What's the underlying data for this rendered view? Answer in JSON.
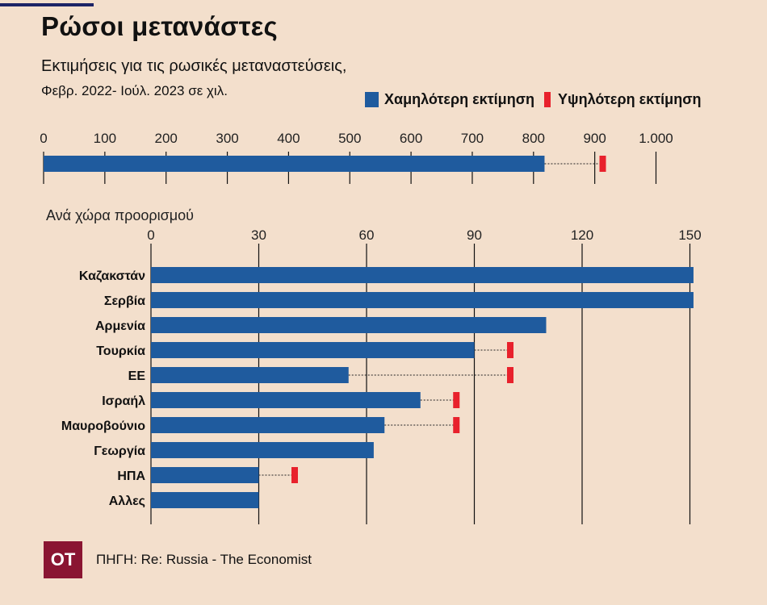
{
  "header": {
    "title": "Ρώσοι μετανάστες",
    "subtitle": "Εκτιμήσεις για τις ρωσικές μεταναστεύσεις,",
    "subtitle2": "Φεβρ. 2022- Ιούλ. 2023 σε χιλ."
  },
  "legend": {
    "low": "Χαμηλότερη εκτίμηση",
    "high": "Υψηλότερη εκτίμηση"
  },
  "colors": {
    "low": "#1f5b9e",
    "high": "#e8212c",
    "background": "#f3dfcc",
    "grid": "#111111"
  },
  "chart_data": [
    {
      "type": "bar",
      "orientation": "horizontal",
      "xlim": [
        0,
        1000
      ],
      "ticks": [
        0,
        100,
        200,
        300,
        400,
        500,
        600,
        700,
        800,
        900,
        1000
      ],
      "tick_labels": [
        "0",
        "100",
        "200",
        "300",
        "400",
        "500",
        "600",
        "700",
        "800",
        "900",
        "1.000"
      ],
      "categories": [
        ""
      ],
      "series": [
        {
          "name": "Χαμηλότερη εκτίμηση",
          "values": [
            818
          ]
        },
        {
          "name": "Υψηλότερη εκτίμηση",
          "values": [
            913
          ]
        }
      ]
    },
    {
      "type": "bar",
      "orientation": "horizontal",
      "title": "Ανά χώρα προορισμού",
      "xlim": [
        0,
        150
      ],
      "ticks": [
        0,
        30,
        60,
        90,
        120,
        150
      ],
      "tick_labels": [
        "0",
        "30",
        "60",
        "90",
        "120",
        "150"
      ],
      "categories": [
        "Καζακστάν",
        "Σερβία",
        "Αρμενία",
        "Τουρκία",
        "ΕΕ",
        "Ισραήλ",
        "Μαυροβούνιο",
        "Γεωργία",
        "ΗΠΑ",
        "Αλλες"
      ],
      "series": [
        {
          "name": "Χαμηλότερη εκτίμηση",
          "values": [
            151,
            151,
            110,
            90,
            55,
            75,
            65,
            62,
            30,
            30
          ]
        },
        {
          "name": "Υψηλότερη εκτίμηση",
          "values": [
            null,
            null,
            null,
            100,
            100,
            85,
            85,
            null,
            40,
            null
          ]
        }
      ]
    }
  ],
  "footer": {
    "logo": "OT",
    "source": "ΠΗΓΗ: Re: Russia - The Economist"
  }
}
